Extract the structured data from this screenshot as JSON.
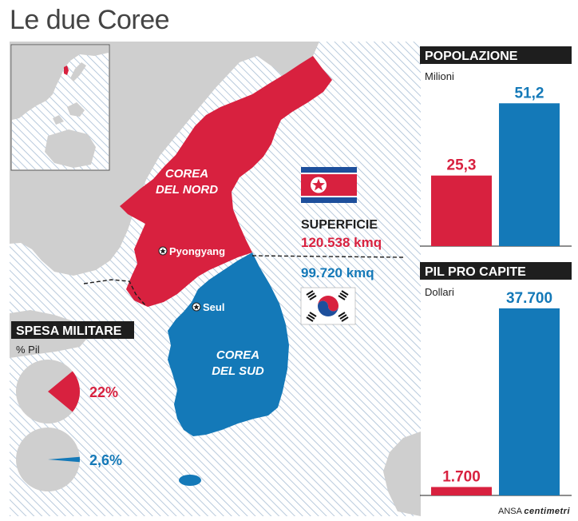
{
  "title": "Le due Coree",
  "map": {
    "north_label_1": "COREA",
    "north_label_2": "DEL NORD",
    "south_label_1": "COREA",
    "south_label_2": "DEL SUD",
    "city_north": "Pyongyang",
    "city_south": "Seul"
  },
  "area": {
    "title": "SUPERFICIE",
    "north_value": "120.538 kmq",
    "south_value": "99.720 kmq"
  },
  "credit": {
    "prefix": "ANSA",
    "brand": "centimetri"
  },
  "colors": {
    "north": "#d8213f",
    "south": "#1479b8",
    "land": "#cfcfcf",
    "sea_hatch": "#9fb6cf",
    "dark": "#1e1e1e"
  },
  "chart_data": [
    {
      "type": "bar",
      "title": "POPOLAZIONE",
      "unit": "Milioni",
      "categories": [
        "Corea del Nord",
        "Corea del Sud"
      ],
      "values": [
        25.3,
        51.2
      ],
      "labels": [
        "25,3",
        "51,2"
      ],
      "ylim": [
        0,
        55
      ]
    },
    {
      "type": "bar",
      "title": "PIL PRO CAPITE",
      "unit": "Dollari",
      "categories": [
        "Corea del Nord",
        "Corea del Sud"
      ],
      "values": [
        1700,
        37700
      ],
      "labels": [
        "1.700",
        "37.700"
      ],
      "ylim": [
        0,
        38000
      ]
    },
    {
      "type": "pie",
      "title": "SPESA MILITARE",
      "unit": "% Pil",
      "series": [
        {
          "category": "Corea del Nord",
          "value": 22,
          "label": "22%"
        },
        {
          "category": "Corea del Sud",
          "value": 2.6,
          "label": "2,6%"
        }
      ]
    }
  ]
}
